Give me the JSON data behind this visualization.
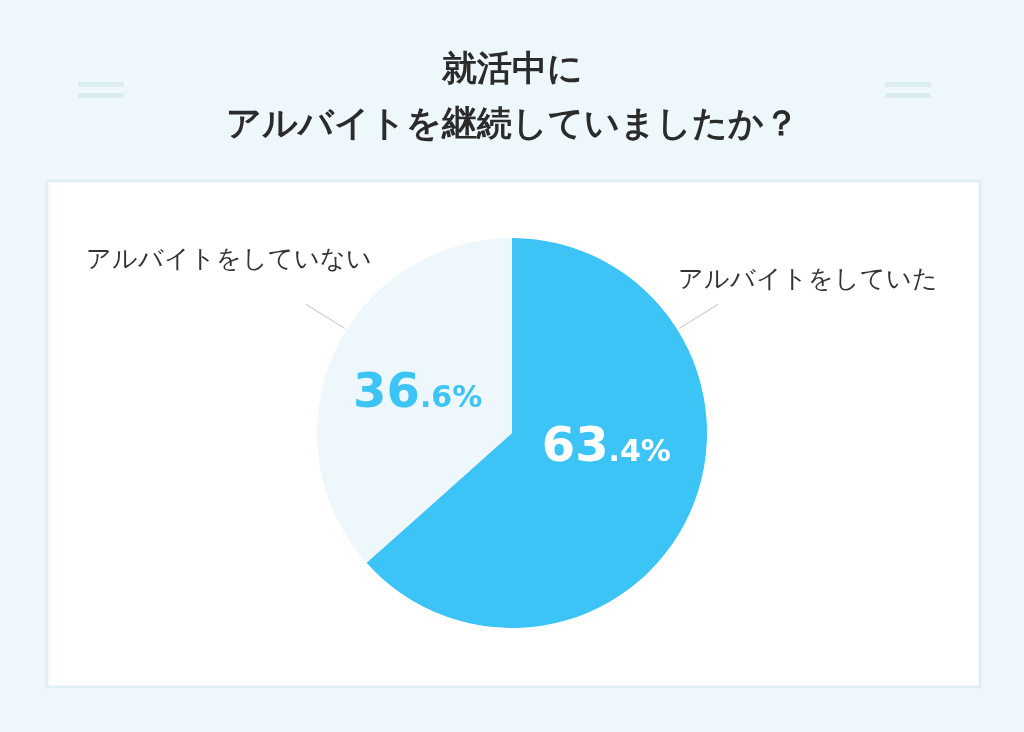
{
  "chart_data": {
    "type": "pie",
    "title": "就活中にアルバイトを継続していましたか？",
    "categories": [
      "アルバイトをしていた",
      "アルバイトをしていない"
    ],
    "values": [
      63.4,
      36.6
    ],
    "colors": [
      "#3dc4f7",
      "#eef7fb"
    ],
    "value_labels": [
      "63.4%",
      "36.6%"
    ]
  }
}
